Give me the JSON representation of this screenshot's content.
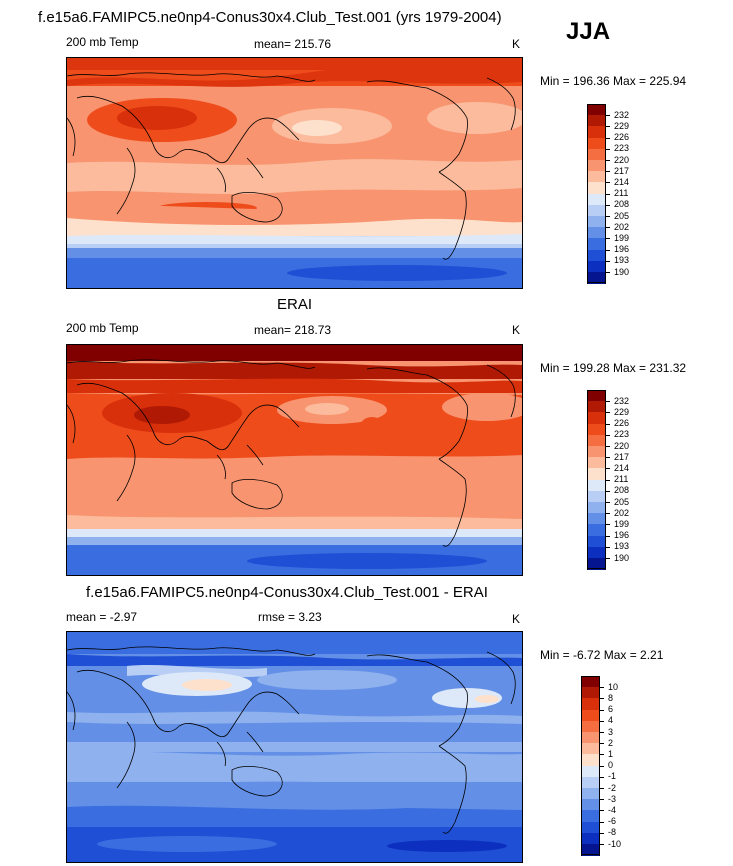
{
  "season": "JJA",
  "panels": [
    {
      "id": "model",
      "title": "f.e15a6.FAMIPC5.ne0np4-Conus30x4.Club_Test.001 (yrs 1979-2004)",
      "left_label": "200 mb Temp",
      "center_label": "mean= 215.76",
      "right_label": "K",
      "minmax": "Min = 196.36 Max = 225.94",
      "colorbar_labels": [
        "232",
        "229",
        "226",
        "223",
        "220",
        "217",
        "214",
        "211",
        "208",
        "205",
        "202",
        "199",
        "196",
        "193",
        "190"
      ]
    },
    {
      "id": "obs",
      "title": "ERAI",
      "left_label": "200 mb Temp",
      "center_label": "mean= 218.73",
      "right_label": "K",
      "minmax": "Min = 199.28 Max = 231.32",
      "colorbar_labels": [
        "232",
        "229",
        "226",
        "223",
        "220",
        "217",
        "214",
        "211",
        "208",
        "205",
        "202",
        "199",
        "196",
        "193",
        "190"
      ]
    },
    {
      "id": "diff",
      "title": "f.e15a6.FAMIPC5.ne0np4-Conus30x4.Club_Test.001 - ERAI",
      "left_label": "mean =  -2.97",
      "center_label": "rmse =   3.23",
      "right_label": "K",
      "minmax": "Min =  -6.72 Max =   2.21",
      "colorbar_labels": [
        "10",
        "8",
        "6",
        "4",
        "3",
        "2",
        "1",
        "0",
        "-1",
        "-2",
        "-3",
        "-4",
        "-6",
        "-8",
        "-10"
      ]
    }
  ],
  "colors": {
    "abs_scale": [
      "#800000",
      "#b01a05",
      "#d8300b",
      "#ef4c1c",
      "#f56e42",
      "#f8946f",
      "#fbbb9c",
      "#fde1cc",
      "#dde8f9",
      "#b8cef4",
      "#8fb1ee",
      "#6390e6",
      "#3a6ee0",
      "#1f4fd4",
      "#0c2fbf",
      "#04158f"
    ],
    "diff_scale": [
      "#800000",
      "#b01a05",
      "#d8300b",
      "#ef4c1c",
      "#f56e42",
      "#f8946f",
      "#fbbb9c",
      "#fde1cc",
      "#dde8f9",
      "#b8cef4",
      "#8fb1ee",
      "#6390e6",
      "#3a6ee0",
      "#1f4fd4",
      "#0c2fbf",
      "#04158f"
    ]
  }
}
